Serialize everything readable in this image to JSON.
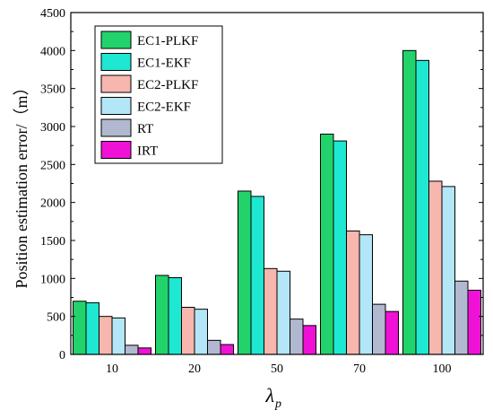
{
  "chart_data": {
    "type": "bar",
    "categories": [
      "10",
      "20",
      "50",
      "70",
      "100"
    ],
    "series": [
      {
        "name": "EC1-PLKF",
        "color": "#22d36b",
        "values": [
          700,
          1040,
          2150,
          2900,
          4000
        ]
      },
      {
        "name": "EC1-EKF",
        "color": "#1ee8d2",
        "values": [
          680,
          1010,
          2080,
          2810,
          3870
        ]
      },
      {
        "name": "EC2-PLKF",
        "color": "#f7b6ae",
        "values": [
          500,
          620,
          1130,
          1625,
          2280
        ]
      },
      {
        "name": "EC2-EKF",
        "color": "#b3e6f6",
        "values": [
          480,
          595,
          1095,
          1575,
          2210
        ]
      },
      {
        "name": "RT",
        "color": "#b2b8d0",
        "values": [
          120,
          185,
          465,
          660,
          965
        ]
      },
      {
        "name": "IRT",
        "color": "#ef12d6",
        "values": [
          85,
          130,
          380,
          565,
          845
        ]
      }
    ],
    "ylabel": "Position estimation error/（m）",
    "xlabel_main": "λ",
    "xlabel_sub": "p",
    "ylim": [
      0,
      4500
    ],
    "yticks": [
      "0",
      "500",
      "1000",
      "1500",
      "2000",
      "2500",
      "3000",
      "3500",
      "4000",
      "4500"
    ],
    "grid": false,
    "legend_position": "top-left"
  }
}
